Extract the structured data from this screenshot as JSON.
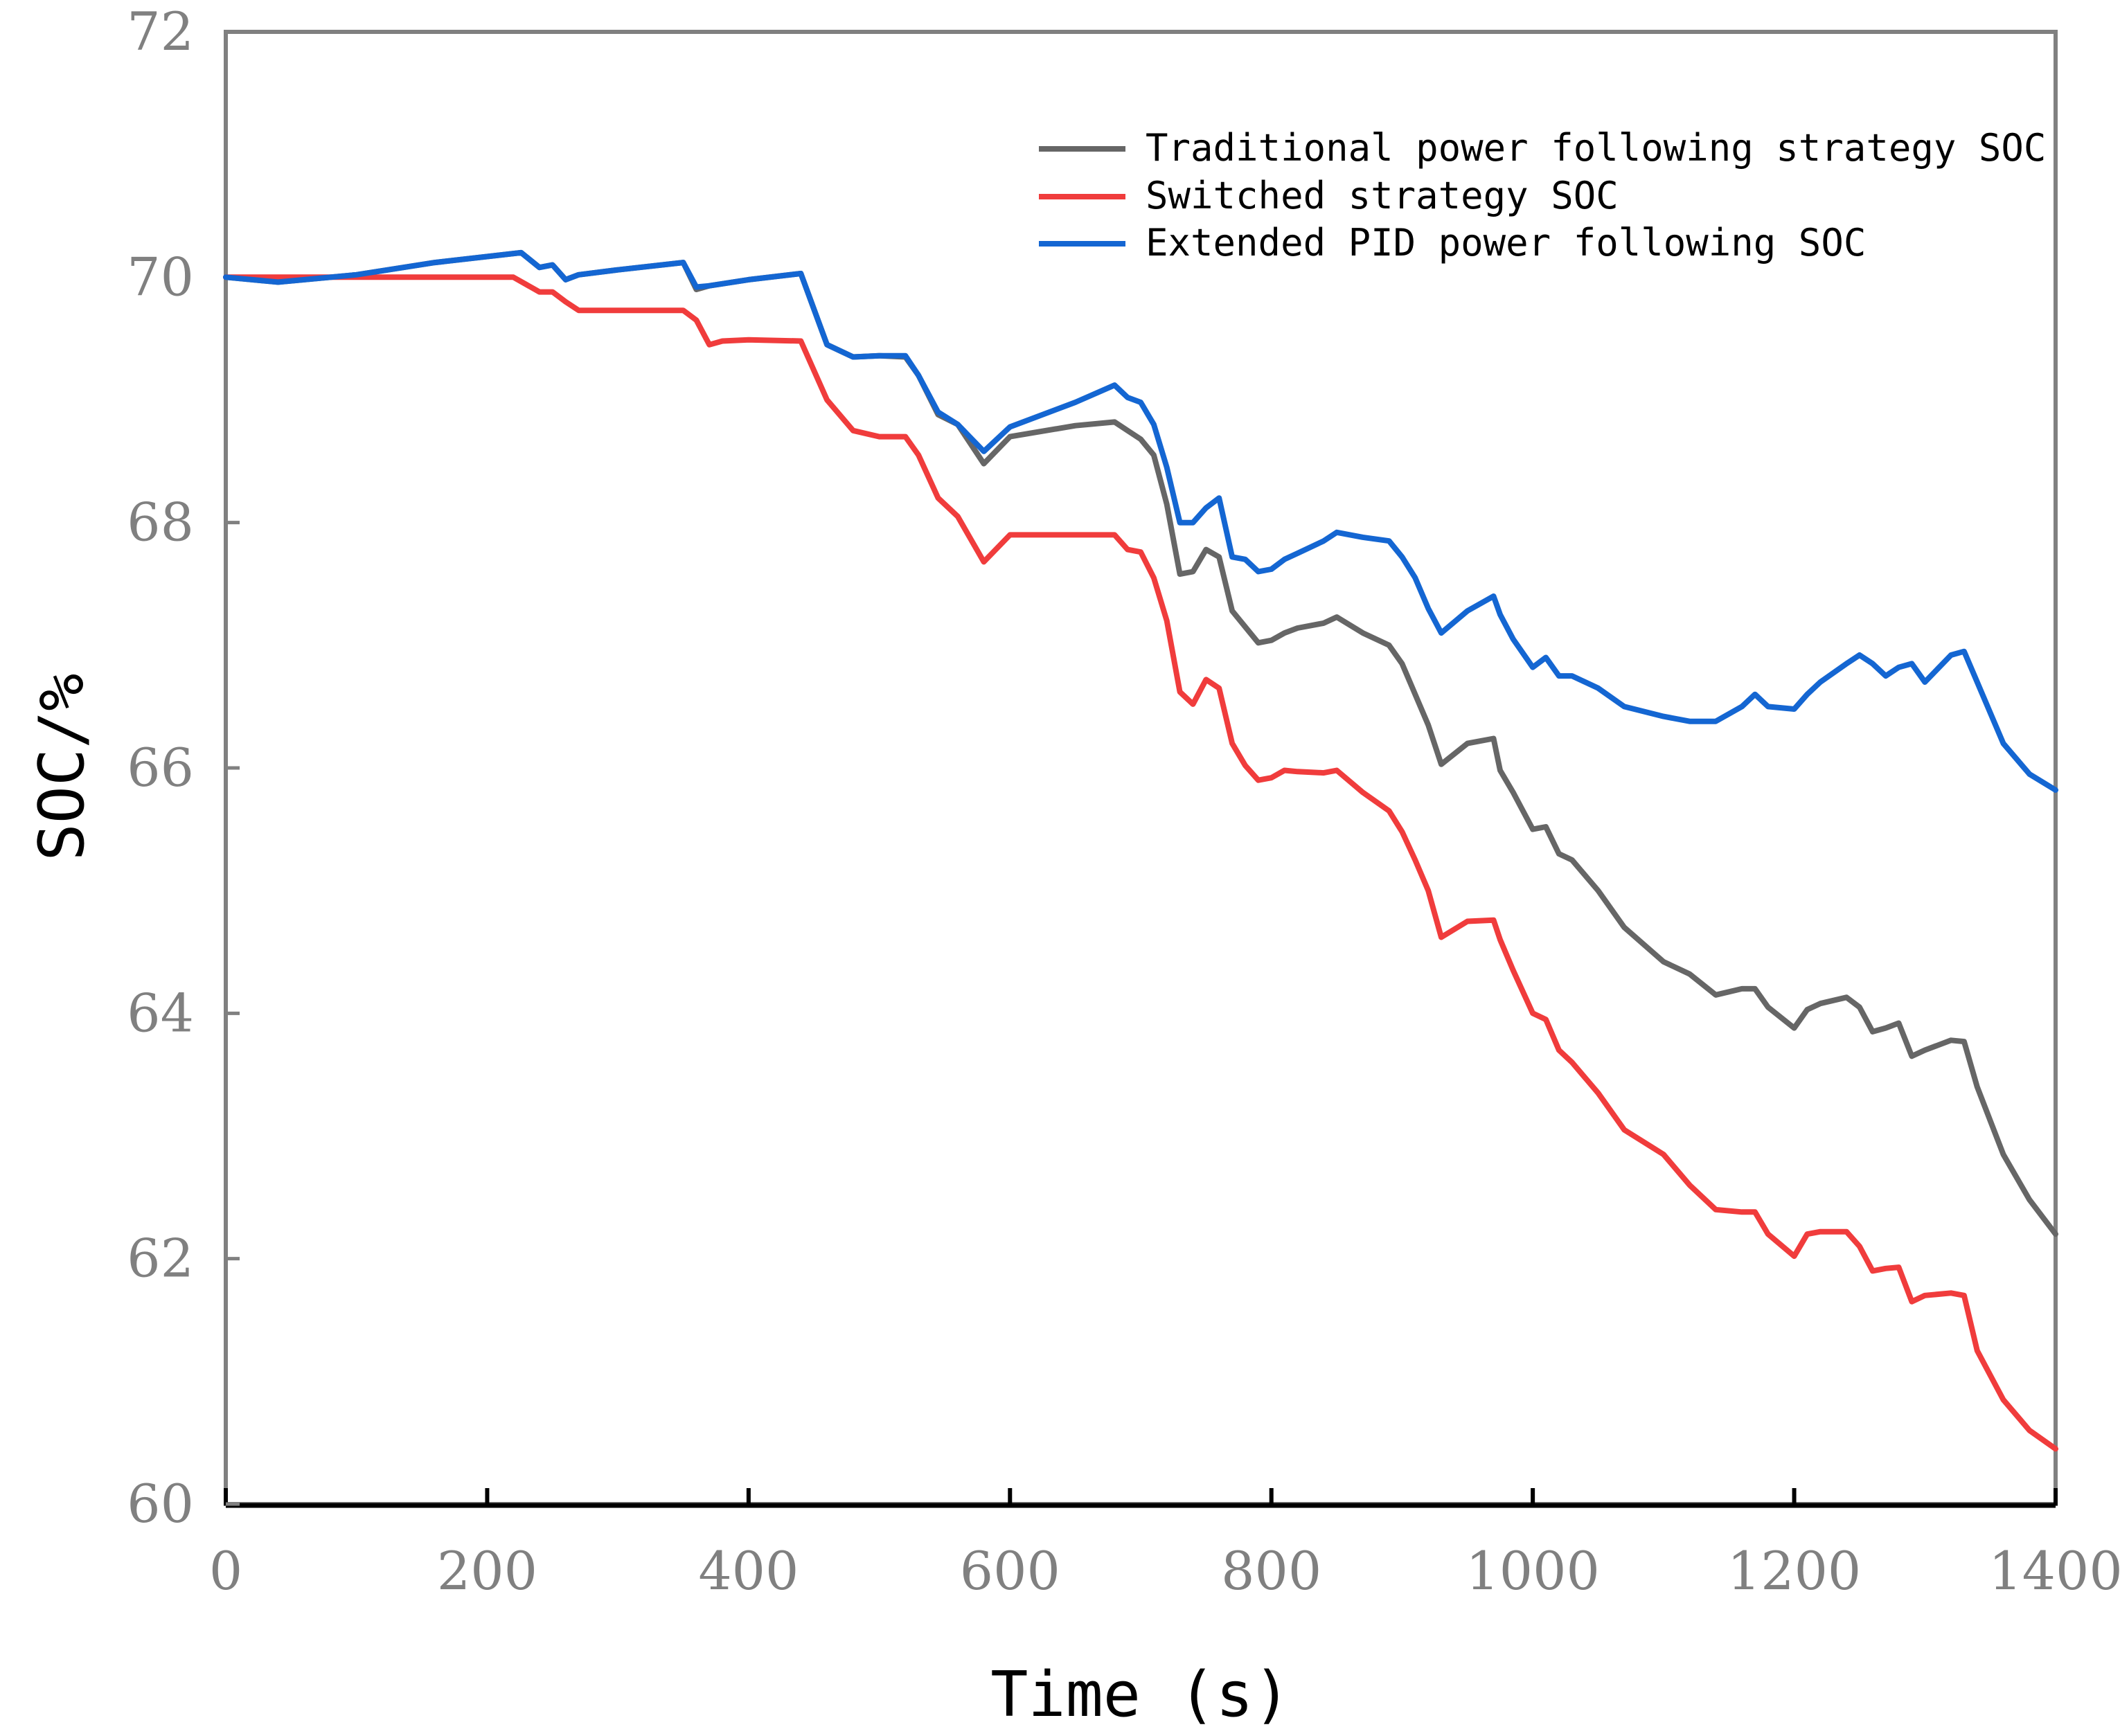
{
  "chart_data": {
    "type": "line",
    "title": "",
    "xlabel": "Time (s)",
    "ylabel": "SOC/%",
    "xlim": [
      0,
      1400
    ],
    "ylim": [
      60,
      72
    ],
    "xticks": [
      0,
      200,
      400,
      600,
      800,
      1000,
      1200,
      1400
    ],
    "yticks": [
      60,
      62,
      64,
      66,
      68,
      70,
      72
    ],
    "xtick_labels": [
      "0",
      "200",
      "400",
      "600",
      "800",
      "1000",
      "1200",
      "1400"
    ],
    "ytick_labels": [
      "60",
      "62",
      "64",
      "66",
      "68",
      "70",
      "72"
    ],
    "grid": false,
    "legend_position": "top-right",
    "series": [
      {
        "name": "Traditional power following strategy SOC",
        "color": "#666666",
        "x": [
          0,
          40,
          100,
          160,
          226,
          240,
          250,
          260,
          270,
          300,
          350,
          360,
          370,
          400,
          440,
          460,
          480,
          500,
          520,
          530,
          545,
          560,
          580,
          600,
          650,
          680,
          690,
          700,
          710,
          720,
          730,
          740,
          750,
          760,
          770,
          780,
          790,
          800,
          810,
          820,
          840,
          850,
          870,
          890,
          900,
          910,
          920,
          930,
          950,
          970,
          975,
          985,
          1000,
          1010,
          1020,
          1030,
          1050,
          1070,
          1100,
          1120,
          1140,
          1160,
          1170,
          1180,
          1200,
          1210,
          1220,
          1240,
          1250,
          1260,
          1270,
          1280,
          1290,
          1300,
          1320,
          1330,
          1340,
          1360,
          1380,
          1400
        ],
        "y": [
          70.0,
          69.96,
          70.02,
          70.12,
          70.2,
          70.08,
          70.1,
          69.98,
          70.02,
          70.06,
          70.12,
          69.9,
          69.93,
          69.98,
          70.03,
          69.45,
          69.35,
          69.36,
          69.35,
          69.2,
          68.88,
          68.8,
          68.48,
          68.7,
          68.79,
          68.82,
          68.75,
          68.68,
          68.55,
          68.15,
          67.58,
          67.6,
          67.78,
          67.72,
          67.28,
          67.15,
          67.02,
          67.04,
          67.1,
          67.14,
          67.18,
          67.23,
          67.1,
          67.0,
          66.85,
          66.6,
          66.35,
          66.03,
          66.2,
          66.24,
          65.98,
          65.8,
          65.5,
          65.52,
          65.3,
          65.25,
          65.0,
          64.7,
          64.42,
          64.32,
          64.15,
          64.2,
          64.2,
          64.05,
          63.88,
          64.03,
          64.08,
          64.13,
          64.05,
          63.85,
          63.88,
          63.92,
          63.65,
          63.7,
          63.78,
          63.77,
          63.4,
          62.85,
          62.48,
          62.2
        ]
      },
      {
        "name": "Switched strategy SOC",
        "color": "#f03c3c",
        "x": [
          0,
          220,
          240,
          250,
          260,
          270,
          300,
          350,
          360,
          370,
          380,
          400,
          440,
          460,
          480,
          500,
          520,
          530,
          545,
          560,
          580,
          600,
          650,
          680,
          690,
          700,
          710,
          720,
          730,
          740,
          750,
          760,
          770,
          780,
          790,
          800,
          810,
          820,
          840,
          850,
          870,
          890,
          900,
          910,
          920,
          930,
          950,
          970,
          975,
          985,
          1000,
          1010,
          1020,
          1030,
          1050,
          1070,
          1100,
          1120,
          1140,
          1160,
          1170,
          1180,
          1200,
          1210,
          1220,
          1240,
          1250,
          1260,
          1270,
          1280,
          1290,
          1300,
          1320,
          1330,
          1340,
          1360,
          1380,
          1400
        ],
        "y": [
          70.0,
          70.0,
          69.88,
          69.88,
          69.8,
          69.73,
          69.73,
          69.73,
          69.65,
          69.45,
          69.48,
          69.49,
          69.48,
          69.0,
          68.75,
          68.7,
          68.7,
          68.55,
          68.2,
          68.05,
          67.68,
          67.9,
          67.9,
          67.9,
          67.78,
          67.76,
          67.55,
          67.2,
          66.62,
          66.52,
          66.72,
          66.65,
          66.2,
          66.02,
          65.9,
          65.92,
          65.98,
          65.97,
          65.96,
          65.98,
          65.8,
          65.65,
          65.48,
          65.25,
          65.0,
          64.62,
          64.75,
          64.76,
          64.6,
          64.35,
          64.0,
          63.95,
          63.7,
          63.6,
          63.35,
          63.05,
          62.85,
          62.6,
          62.4,
          62.38,
          62.38,
          62.2,
          62.02,
          62.2,
          62.22,
          62.22,
          62.1,
          61.9,
          61.92,
          61.93,
          61.65,
          61.7,
          61.72,
          61.7,
          61.25,
          60.85,
          60.6,
          60.45
        ]
      },
      {
        "name": "Extended PID power following SOC",
        "color": "#1466d2",
        "x": [
          0,
          40,
          100,
          160,
          226,
          240,
          250,
          260,
          270,
          300,
          350,
          360,
          370,
          400,
          440,
          460,
          480,
          500,
          520,
          530,
          545,
          560,
          580,
          600,
          650,
          680,
          690,
          700,
          710,
          720,
          730,
          740,
          750,
          760,
          770,
          780,
          790,
          800,
          810,
          820,
          840,
          850,
          870,
          890,
          900,
          910,
          920,
          930,
          950,
          970,
          975,
          985,
          1000,
          1010,
          1020,
          1030,
          1050,
          1070,
          1100,
          1120,
          1140,
          1160,
          1170,
          1180,
          1200,
          1210,
          1220,
          1240,
          1250,
          1260,
          1270,
          1280,
          1290,
          1300,
          1320,
          1330,
          1340,
          1360,
          1380,
          1400
        ],
        "y": [
          70.0,
          69.96,
          70.02,
          70.12,
          70.2,
          70.08,
          70.1,
          69.98,
          70.02,
          70.06,
          70.12,
          69.92,
          69.93,
          69.98,
          70.03,
          69.45,
          69.35,
          69.36,
          69.36,
          69.2,
          68.9,
          68.8,
          68.58,
          68.78,
          68.98,
          69.12,
          69.02,
          68.98,
          68.8,
          68.45,
          68.0,
          68.0,
          68.12,
          68.2,
          67.72,
          67.7,
          67.6,
          67.62,
          67.7,
          67.75,
          67.85,
          67.92,
          67.88,
          67.85,
          67.72,
          67.55,
          67.3,
          67.1,
          67.28,
          67.4,
          67.25,
          67.05,
          66.82,
          66.9,
          66.75,
          66.75,
          66.65,
          66.5,
          66.42,
          66.38,
          66.38,
          66.5,
          66.6,
          66.5,
          66.48,
          66.6,
          66.7,
          66.85,
          66.92,
          66.85,
          66.75,
          66.82,
          66.85,
          66.7,
          66.92,
          66.95,
          66.7,
          66.2,
          65.95,
          65.82
        ]
      }
    ]
  }
}
